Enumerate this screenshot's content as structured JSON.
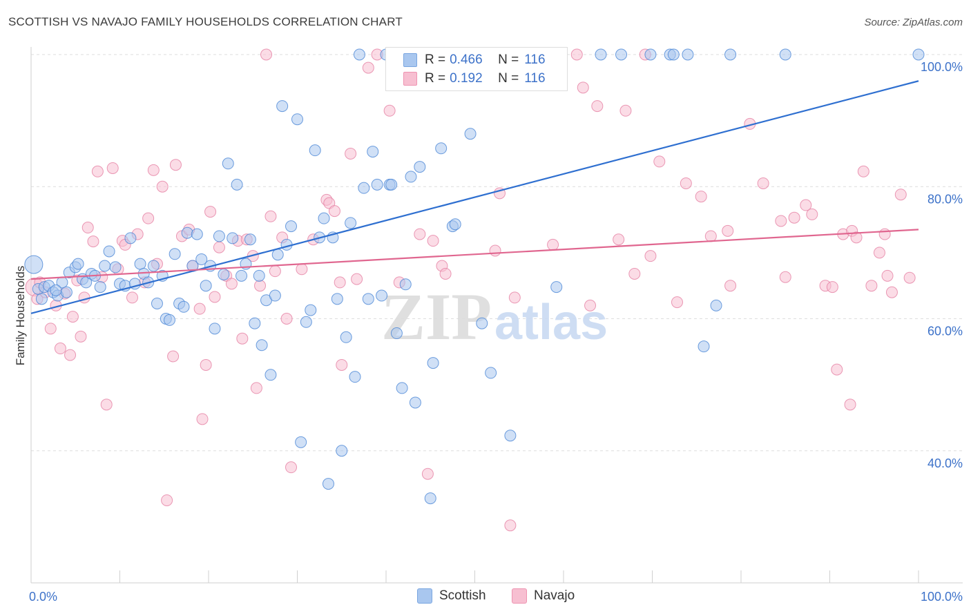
{
  "title": "SCOTTISH VS NAVAJO FAMILY HOUSEHOLDS CORRELATION CHART",
  "source": "Source: ZipAtlas.com",
  "watermark": {
    "zip": "ZIP",
    "atlas": "atlas"
  },
  "legend_top": {
    "rows": [
      {
        "r_label": "R =",
        "r_value": "0.466",
        "n_label": "N =",
        "n_value": "116",
        "color": "#a9c7ef",
        "border": "#7aa6e0"
      },
      {
        "r_label": "R =",
        "r_value": "0.192",
        "n_label": "N =",
        "n_value": "116",
        "color": "#f7bfd1",
        "border": "#ee93b1"
      }
    ]
  },
  "legend_bottom": [
    {
      "label": "Scottish",
      "color": "#a9c7ef",
      "border": "#7aa6e0"
    },
    {
      "label": "Navajo",
      "color": "#f7bfd1",
      "border": "#ee93b1"
    }
  ],
  "chart_data": {
    "type": "scatter",
    "title": "SCOTTISH VS NAVAJO FAMILY HOUSEHOLDS CORRELATION CHART",
    "xlabel": "",
    "ylabel": "Family Households",
    "xlim": [
      0,
      100
    ],
    "ylim": [
      20,
      100
    ],
    "x_tick_labels": [
      "0.0%",
      "100.0%"
    ],
    "y_tick_labels": [
      "40.0%",
      "60.0%",
      "80.0%",
      "100.0%"
    ],
    "y_ticks": [
      40,
      60,
      80,
      100
    ],
    "grid": true,
    "legend_position": "top-center",
    "series": [
      {
        "name": "Scottish",
        "color": "#4a86d6",
        "fill": "#a9c7ef",
        "trend_color": "#2e6fd0",
        "trend": {
          "x": [
            0,
            100
          ],
          "y": [
            60.8,
            96.0
          ]
        },
        "points": [
          [
            0.3,
            68.2
          ],
          [
            0.8,
            64.5
          ],
          [
            1.2,
            63.0
          ],
          [
            1.5,
            64.8
          ],
          [
            2.0,
            65.0
          ],
          [
            2.5,
            64.0
          ],
          [
            3.0,
            63.5
          ],
          [
            3.5,
            65.5
          ],
          [
            4.0,
            64.0
          ],
          [
            4.3,
            67.0
          ],
          [
            5.0,
            67.8
          ],
          [
            5.3,
            68.3
          ],
          [
            5.8,
            66.0
          ],
          [
            6.2,
            65.5
          ],
          [
            6.8,
            66.8
          ],
          [
            7.2,
            66.5
          ],
          [
            7.8,
            64.8
          ],
          [
            8.3,
            68.0
          ],
          [
            8.8,
            70.2
          ],
          [
            9.5,
            67.8
          ],
          [
            10.0,
            65.3
          ],
          [
            10.6,
            65.0
          ],
          [
            11.2,
            72.2
          ],
          [
            11.7,
            65.3
          ],
          [
            12.3,
            68.3
          ],
          [
            12.7,
            66.8
          ],
          [
            13.2,
            65.5
          ],
          [
            13.8,
            68.0
          ],
          [
            14.2,
            62.3
          ],
          [
            14.8,
            66.5
          ],
          [
            15.2,
            60.0
          ],
          [
            15.6,
            59.8
          ],
          [
            16.2,
            69.8
          ],
          [
            16.7,
            62.3
          ],
          [
            17.2,
            61.8
          ],
          [
            17.6,
            73.0
          ],
          [
            18.2,
            68.0
          ],
          [
            18.7,
            72.8
          ],
          [
            19.2,
            69.0
          ],
          [
            19.7,
            65.0
          ],
          [
            20.2,
            68.0
          ],
          [
            20.7,
            58.5
          ],
          [
            21.2,
            72.5
          ],
          [
            21.7,
            66.7
          ],
          [
            22.2,
            83.5
          ],
          [
            22.7,
            72.2
          ],
          [
            23.2,
            80.3
          ],
          [
            23.7,
            66.5
          ],
          [
            24.2,
            68.3
          ],
          [
            24.7,
            72.0
          ],
          [
            25.2,
            59.3
          ],
          [
            25.7,
            66.5
          ],
          [
            26.0,
            56.0
          ],
          [
            26.5,
            62.8
          ],
          [
            27.0,
            51.5
          ],
          [
            27.5,
            63.5
          ],
          [
            27.8,
            69.7
          ],
          [
            28.3,
            92.2
          ],
          [
            28.8,
            71.2
          ],
          [
            29.3,
            74.0
          ],
          [
            30.0,
            90.2
          ],
          [
            30.4,
            41.3
          ],
          [
            31.0,
            59.5
          ],
          [
            31.5,
            61.3
          ],
          [
            32.0,
            85.5
          ],
          [
            32.5,
            72.3
          ],
          [
            33.0,
            75.2
          ],
          [
            33.5,
            35.0
          ],
          [
            34.0,
            72.3
          ],
          [
            34.5,
            63.0
          ],
          [
            35.0,
            40.0
          ],
          [
            35.5,
            57.2
          ],
          [
            36.0,
            74.5
          ],
          [
            36.5,
            51.2
          ],
          [
            37.0,
            100.0
          ],
          [
            37.5,
            79.8
          ],
          [
            38.0,
            63.0
          ],
          [
            38.5,
            85.3
          ],
          [
            39.0,
            80.3
          ],
          [
            39.5,
            63.5
          ],
          [
            40.0,
            100.0
          ],
          [
            40.4,
            80.3
          ],
          [
            40.6,
            80.3
          ],
          [
            41.2,
            57.8
          ],
          [
            41.8,
            49.5
          ],
          [
            42.2,
            65.2
          ],
          [
            42.8,
            81.5
          ],
          [
            43.3,
            47.3
          ],
          [
            43.8,
            83.0
          ],
          [
            44.5,
            95.8
          ],
          [
            45.0,
            32.8
          ],
          [
            45.3,
            53.3
          ],
          [
            46.2,
            85.8
          ],
          [
            47.5,
            74.0
          ],
          [
            47.8,
            74.3
          ],
          [
            48.5,
            100.0
          ],
          [
            49.5,
            88.0
          ],
          [
            50.8,
            59.3
          ],
          [
            51.2,
            100.0
          ],
          [
            51.8,
            51.8
          ],
          [
            54.0,
            42.3
          ],
          [
            57.0,
            100.0
          ],
          [
            58.0,
            100.0
          ],
          [
            59.2,
            64.8
          ],
          [
            64.2,
            100.0
          ],
          [
            66.5,
            100.0
          ],
          [
            69.8,
            100.0
          ],
          [
            72.0,
            100.0
          ],
          [
            72.4,
            100.0
          ],
          [
            74.0,
            100.0
          ],
          [
            75.8,
            55.8
          ],
          [
            77.2,
            62.0
          ],
          [
            78.8,
            100.0
          ],
          [
            85.0,
            100.0
          ],
          [
            100.0,
            100.0
          ],
          [
            2.8,
            64.3
          ]
        ]
      },
      {
        "name": "Navajo",
        "color": "#e57fa2",
        "fill": "#f7bfd1",
        "trend_color": "#e0668f",
        "trend": {
          "x": [
            0,
            100
          ],
          "y": [
            66.0,
            73.5
          ]
        },
        "points": [
          [
            0.4,
            64.8
          ],
          [
            0.7,
            63.0
          ],
          [
            1.0,
            65.5
          ],
          [
            1.6,
            64.0
          ],
          [
            2.2,
            58.5
          ],
          [
            2.8,
            62.0
          ],
          [
            3.3,
            55.5
          ],
          [
            3.8,
            63.8
          ],
          [
            4.4,
            54.5
          ],
          [
            4.7,
            60.3
          ],
          [
            5.2,
            65.8
          ],
          [
            5.6,
            57.3
          ],
          [
            6.0,
            63.2
          ],
          [
            6.4,
            73.8
          ],
          [
            7.0,
            71.7
          ],
          [
            7.5,
            82.3
          ],
          [
            8.0,
            66.3
          ],
          [
            8.5,
            47.0
          ],
          [
            9.2,
            82.8
          ],
          [
            9.8,
            67.5
          ],
          [
            10.3,
            71.8
          ],
          [
            10.6,
            71.2
          ],
          [
            11.4,
            63.2
          ],
          [
            12.0,
            72.8
          ],
          [
            12.8,
            65.5
          ],
          [
            13.2,
            75.2
          ],
          [
            13.8,
            82.5
          ],
          [
            14.2,
            68.3
          ],
          [
            14.8,
            80.0
          ],
          [
            15.3,
            32.5
          ],
          [
            16.0,
            54.3
          ],
          [
            16.3,
            83.3
          ],
          [
            17.0,
            72.5
          ],
          [
            17.8,
            73.5
          ],
          [
            18.2,
            68.0
          ],
          [
            19.0,
            61.5
          ],
          [
            19.3,
            44.8
          ],
          [
            19.7,
            53.0
          ],
          [
            20.2,
            76.2
          ],
          [
            20.7,
            63.3
          ],
          [
            21.2,
            70.8
          ],
          [
            22.0,
            66.5
          ],
          [
            22.6,
            65.3
          ],
          [
            23.3,
            71.8
          ],
          [
            23.8,
            57.0
          ],
          [
            24.3,
            72.0
          ],
          [
            25.0,
            69.5
          ],
          [
            25.4,
            49.5
          ],
          [
            25.8,
            65.0
          ],
          [
            26.5,
            100.0
          ],
          [
            27.0,
            75.5
          ],
          [
            27.5,
            67.2
          ],
          [
            28.3,
            72.3
          ],
          [
            28.8,
            60.0
          ],
          [
            29.3,
            37.5
          ],
          [
            30.5,
            67.5
          ],
          [
            31.8,
            72.0
          ],
          [
            33.3,
            78.0
          ],
          [
            33.6,
            77.5
          ],
          [
            34.2,
            76.3
          ],
          [
            34.8,
            65.5
          ],
          [
            35.0,
            53.0
          ],
          [
            36.0,
            85.0
          ],
          [
            36.7,
            66.0
          ],
          [
            38.0,
            98.0
          ],
          [
            39.0,
            100.0
          ],
          [
            40.4,
            91.5
          ],
          [
            41.5,
            65.5
          ],
          [
            43.8,
            72.8
          ],
          [
            44.7,
            36.5
          ],
          [
            45.3,
            71.8
          ],
          [
            46.3,
            68.0
          ],
          [
            46.7,
            66.8
          ],
          [
            52.3,
            70.3
          ],
          [
            52.8,
            79.0
          ],
          [
            54.0,
            28.7
          ],
          [
            54.5,
            63.2
          ],
          [
            58.8,
            71.2
          ],
          [
            61.5,
            100.0
          ],
          [
            62.2,
            95.0
          ],
          [
            63.0,
            62.0
          ],
          [
            63.8,
            92.2
          ],
          [
            66.2,
            72.0
          ],
          [
            67.0,
            91.5
          ],
          [
            68.0,
            66.8
          ],
          [
            69.2,
            100.0
          ],
          [
            69.8,
            69.5
          ],
          [
            70.8,
            83.8
          ],
          [
            72.8,
            62.5
          ],
          [
            73.8,
            80.5
          ],
          [
            75.5,
            78.5
          ],
          [
            76.6,
            72.5
          ],
          [
            78.5,
            73.3
          ],
          [
            78.8,
            65.0
          ],
          [
            81.0,
            89.5
          ],
          [
            82.5,
            80.5
          ],
          [
            84.5,
            74.8
          ],
          [
            85.0,
            66.3
          ],
          [
            86.0,
            75.3
          ],
          [
            87.3,
            77.2
          ],
          [
            88.0,
            75.8
          ],
          [
            89.5,
            65.0
          ],
          [
            90.3,
            64.8
          ],
          [
            90.8,
            52.3
          ],
          [
            91.5,
            72.8
          ],
          [
            92.3,
            47.0
          ],
          [
            92.5,
            73.3
          ],
          [
            93.0,
            72.3
          ],
          [
            93.8,
            82.3
          ],
          [
            94.7,
            65.0
          ],
          [
            95.6,
            70.0
          ],
          [
            96.2,
            72.8
          ],
          [
            96.5,
            66.5
          ],
          [
            97.0,
            64.0
          ],
          [
            98.0,
            78.8
          ],
          [
            99.0,
            66.2
          ]
        ]
      }
    ]
  }
}
